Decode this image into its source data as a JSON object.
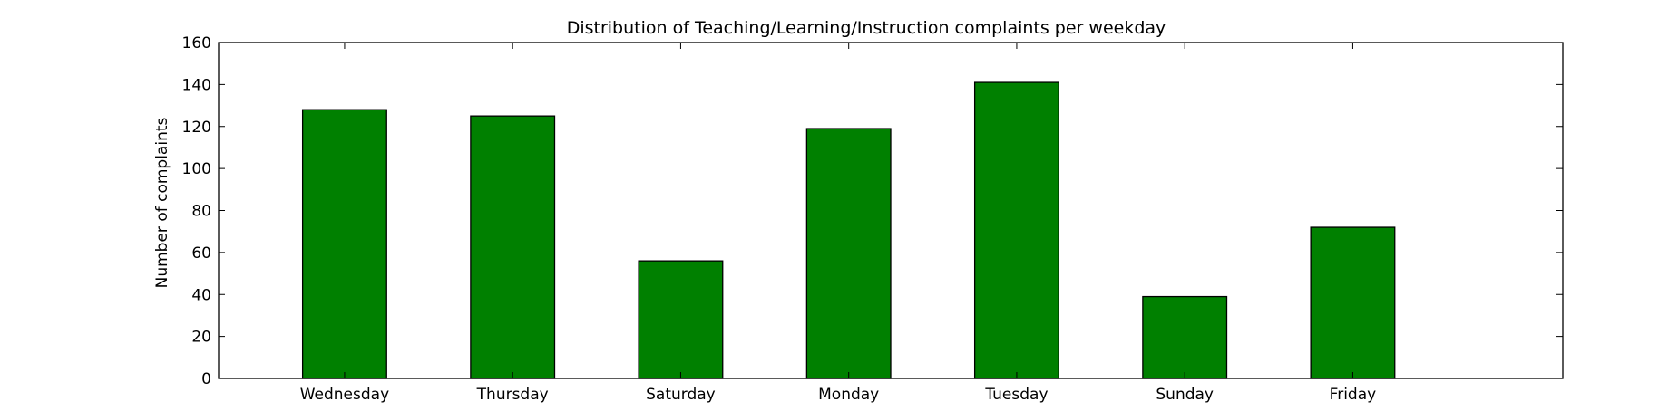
{
  "chart_data": {
    "type": "bar",
    "title": "Distribution of  Teaching/Learning/Instruction complaints per weekday",
    "xlabel": "",
    "ylabel": "Number of complaints",
    "categories": [
      "Wednesday",
      "Thursday",
      "Saturday",
      "Monday",
      "Tuesday",
      "Sunday",
      "Friday"
    ],
    "values": [
      128,
      125,
      56,
      119,
      141,
      39,
      72
    ],
    "ylim": [
      0,
      160
    ],
    "yticks": [
      0,
      20,
      40,
      60,
      80,
      100,
      120,
      140,
      160
    ],
    "xlim": [
      -0.75,
      7.25
    ],
    "bar_color": "#008000",
    "edge_color": "#000000",
    "grid": false,
    "legend": "none"
  }
}
